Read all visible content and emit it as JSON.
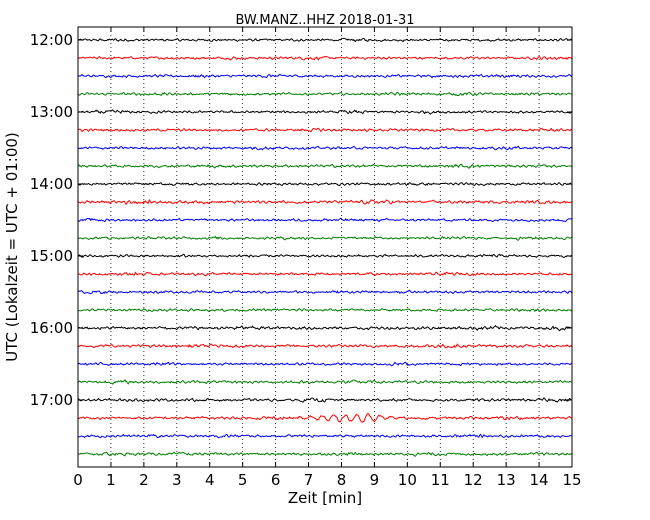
{
  "chart_data": {
    "type": "line",
    "title": "BW.MANZ..HHZ 2018-01-31",
    "xlabel": "Zeit  [min]",
    "ylabel": "UTC (Lokalzeit = UTC + 01:00)",
    "xlim": [
      0,
      15
    ],
    "x_ticks": [
      "0",
      "1",
      "2",
      "3",
      "4",
      "5",
      "6",
      "7",
      "8",
      "9",
      "10",
      "11",
      "12",
      "13",
      "14",
      "15"
    ],
    "y_ticks": [
      "12:00",
      "13:00",
      "14:00",
      "15:00",
      "16:00",
      "17:00"
    ],
    "grid": "vertical dotted",
    "trace_colors": [
      "#000000",
      "#ff0000",
      "#0000ff",
      "#008000"
    ],
    "traces": [
      {
        "start": "12:00",
        "amplitude": 1.0
      },
      {
        "start": "12:15",
        "amplitude": 1.0
      },
      {
        "start": "12:30",
        "amplitude": 1.0
      },
      {
        "start": "12:45",
        "amplitude": 1.0
      },
      {
        "start": "13:00",
        "amplitude": 1.0
      },
      {
        "start": "13:15",
        "amplitude": 1.0
      },
      {
        "start": "13:30",
        "amplitude": 1.0
      },
      {
        "start": "13:45",
        "amplitude": 1.1
      },
      {
        "start": "14:00",
        "amplitude": 1.0
      },
      {
        "start": "14:15",
        "amplitude": 1.2
      },
      {
        "start": "14:30",
        "amplitude": 1.0
      },
      {
        "start": "14:45",
        "amplitude": 1.0
      },
      {
        "start": "15:00",
        "amplitude": 1.0
      },
      {
        "start": "15:15",
        "amplitude": 1.0
      },
      {
        "start": "15:30",
        "amplitude": 1.0
      },
      {
        "start": "15:45",
        "amplitude": 1.0
      },
      {
        "start": "16:00",
        "amplitude": 1.2
      },
      {
        "start": "16:15",
        "amplitude": 1.1
      },
      {
        "start": "16:30",
        "amplitude": 1.0
      },
      {
        "start": "16:45",
        "amplitude": 1.1
      },
      {
        "start": "17:00",
        "amplitude": 1.1
      },
      {
        "start": "17:15",
        "amplitude": 1.0,
        "event": {
          "x_start": 6.5,
          "x_end": 10.2,
          "amplitude": 3.5
        }
      },
      {
        "start": "17:30",
        "amplitude": 1.0
      },
      {
        "start": "17:45",
        "amplitude": 1.0
      }
    ]
  }
}
